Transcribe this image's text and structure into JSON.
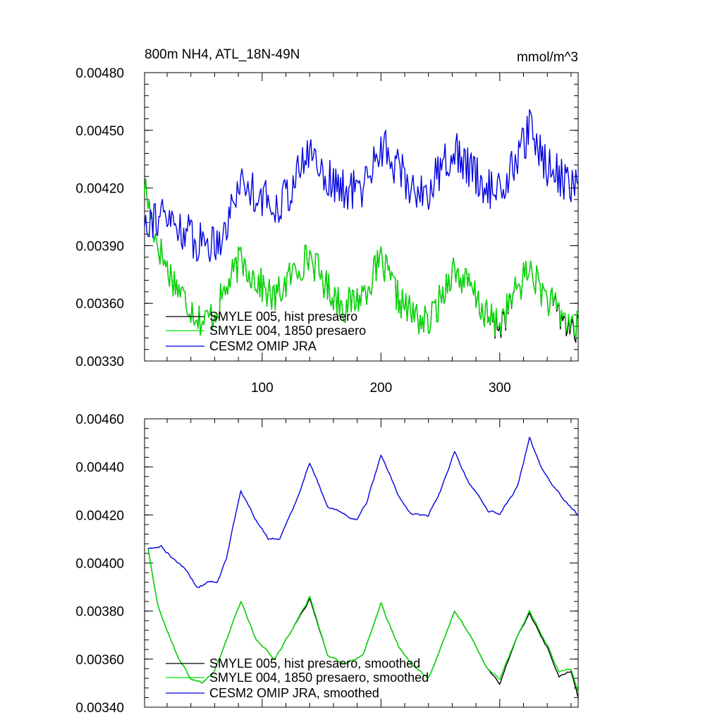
{
  "chart_data": [
    {
      "type": "line",
      "title": "800m NH4, ATL_18N-49N",
      "units": "mmol/m^3",
      "xlim": [
        1,
        366
      ],
      "ylim": [
        0.0033,
        0.0048
      ],
      "x_ticks": [
        100,
        200,
        300
      ],
      "y_ticks": [
        "0.00480",
        "0.00450",
        "0.00420",
        "0.00390",
        "0.00360",
        "0.00330"
      ],
      "y_tick_values": [
        0.0048,
        0.0045,
        0.0042,
        0.0039,
        0.0036,
        0.0033
      ],
      "legend": {
        "placement": "bottom-left"
      },
      "smoothed": false,
      "series": [
        {
          "name": "SMYLE 005, hist presaero",
          "color": "#000000",
          "key": "smyle005",
          "anchors": [
            [
              1,
              0.00422
            ],
            [
              10,
              0.00395
            ],
            [
              20,
              0.00378
            ],
            [
              35,
              0.00362
            ],
            [
              50,
              0.0035
            ],
            [
              60,
              0.00355
            ],
            [
              70,
              0.00368
            ],
            [
              82,
              0.00383
            ],
            [
              95,
              0.00372
            ],
            [
              110,
              0.00362
            ],
            [
              125,
              0.00375
            ],
            [
              140,
              0.00385
            ],
            [
              155,
              0.00368
            ],
            [
              170,
              0.00358
            ],
            [
              185,
              0.00365
            ],
            [
              200,
              0.00382
            ],
            [
              215,
              0.00362
            ],
            [
              225,
              0.00355
            ],
            [
              240,
              0.00349
            ],
            [
              250,
              0.00362
            ],
            [
              260,
              0.00378
            ],
            [
              275,
              0.00368
            ],
            [
              290,
              0.00352
            ],
            [
              300,
              0.00348
            ],
            [
              315,
              0.00368
            ],
            [
              325,
              0.00378
            ],
            [
              340,
              0.00362
            ],
            [
              355,
              0.0035
            ],
            [
              366,
              0.00345
            ]
          ],
          "amplitude": 9e-05
        },
        {
          "name": "SMYLE 004, 1850 presaero",
          "color": "#00e000",
          "key": "smyle004",
          "anchors": [
            [
              1,
              0.00422
            ],
            [
              10,
              0.00395
            ],
            [
              20,
              0.00378
            ],
            [
              35,
              0.00362
            ],
            [
              50,
              0.0035
            ],
            [
              60,
              0.00355
            ],
            [
              70,
              0.00368
            ],
            [
              82,
              0.00383
            ],
            [
              95,
              0.00372
            ],
            [
              110,
              0.00362
            ],
            [
              125,
              0.00375
            ],
            [
              140,
              0.00385
            ],
            [
              155,
              0.00368
            ],
            [
              170,
              0.00358
            ],
            [
              185,
              0.00365
            ],
            [
              200,
              0.00382
            ],
            [
              215,
              0.00362
            ],
            [
              225,
              0.00355
            ],
            [
              240,
              0.00349
            ],
            [
              250,
              0.00362
            ],
            [
              260,
              0.00378
            ],
            [
              275,
              0.00368
            ],
            [
              290,
              0.00352
            ],
            [
              300,
              0.0035
            ],
            [
              315,
              0.00368
            ],
            [
              325,
              0.00378
            ],
            [
              340,
              0.00362
            ],
            [
              355,
              0.00352
            ],
            [
              366,
              0.00347
            ]
          ],
          "amplitude": 9e-05
        },
        {
          "name": "CESM2 OMIP JRA",
          "color": "#0000e0",
          "key": "omip",
          "anchors": [
            [
              1,
              0.00405
            ],
            [
              15,
              0.00405
            ],
            [
              30,
              0.004
            ],
            [
              45,
              0.00392
            ],
            [
              60,
              0.00392
            ],
            [
              70,
              0.004
            ],
            [
              80,
              0.00423
            ],
            [
              95,
              0.00418
            ],
            [
              110,
              0.0041
            ],
            [
              125,
              0.0042
            ],
            [
              140,
              0.0044
            ],
            [
              155,
              0.00425
            ],
            [
              170,
              0.00418
            ],
            [
              185,
              0.0042
            ],
            [
              200,
              0.00443
            ],
            [
              215,
              0.0043
            ],
            [
              225,
              0.0042
            ],
            [
              240,
              0.00418
            ],
            [
              260,
              0.0044
            ],
            [
              275,
              0.0043
            ],
            [
              290,
              0.0042
            ],
            [
              300,
              0.00418
            ],
            [
              315,
              0.00435
            ],
            [
              325,
              0.0045
            ],
            [
              340,
              0.00432
            ],
            [
              355,
              0.00424
            ],
            [
              366,
              0.0042
            ]
          ],
          "amplitude": 0.00011
        }
      ]
    },
    {
      "type": "line",
      "title": "",
      "units": "",
      "xlim": [
        1,
        366
      ],
      "ylim": [
        0.0034,
        0.0046
      ],
      "x_ticks": [
        100,
        200,
        300
      ],
      "y_ticks": [
        "0.00460",
        "0.00440",
        "0.00420",
        "0.00400",
        "0.00380",
        "0.00360",
        "0.00340"
      ],
      "y_tick_values": [
        0.0046,
        0.0044,
        0.0042,
        0.004,
        0.0038,
        0.0036,
        0.0034
      ],
      "legend": {
        "placement": "bottom-left"
      },
      "smoothed": true,
      "series": [
        {
          "name": "SMYLE 005, hist presaero, smoothed",
          "color": "#000000",
          "key": "smyle005s",
          "anchors": [
            [
              4,
              0.00406
            ],
            [
              12,
              0.00383
            ],
            [
              20,
              0.00372
            ],
            [
              30,
              0.0036
            ],
            [
              40,
              0.00352
            ],
            [
              50,
              0.0035
            ],
            [
              60,
              0.00355
            ],
            [
              70,
              0.00368
            ],
            [
              82,
              0.00384
            ],
            [
              95,
              0.00368
            ],
            [
              110,
              0.0036
            ],
            [
              125,
              0.00372
            ],
            [
              140,
              0.00385
            ],
            [
              155,
              0.00362
            ],
            [
              170,
              0.00358
            ],
            [
              185,
              0.00362
            ],
            [
              200,
              0.00383
            ],
            [
              215,
              0.00365
            ],
            [
              225,
              0.00358
            ],
            [
              240,
              0.00352
            ],
            [
              250,
              0.00364
            ],
            [
              262,
              0.0038
            ],
            [
              275,
              0.0037
            ],
            [
              290,
              0.00356
            ],
            [
              300,
              0.0035
            ],
            [
              315,
              0.0037
            ],
            [
              325,
              0.00379
            ],
            [
              340,
              0.00365
            ],
            [
              350,
              0.00353
            ],
            [
              360,
              0.00355
            ],
            [
              366,
              0.00344
            ]
          ],
          "amplitude": 1.2e-05
        },
        {
          "name": "SMYLE 004, 1850 presaero, smoothed",
          "color": "#00e000",
          "key": "smyle004s",
          "anchors": [
            [
              4,
              0.00406
            ],
            [
              12,
              0.00383
            ],
            [
              20,
              0.00372
            ],
            [
              30,
              0.0036
            ],
            [
              40,
              0.00352
            ],
            [
              50,
              0.0035
            ],
            [
              60,
              0.00355
            ],
            [
              70,
              0.00368
            ],
            [
              82,
              0.00384
            ],
            [
              95,
              0.00368
            ],
            [
              110,
              0.0036
            ],
            [
              125,
              0.00372
            ],
            [
              140,
              0.00386
            ],
            [
              155,
              0.00362
            ],
            [
              170,
              0.00358
            ],
            [
              185,
              0.00362
            ],
            [
              200,
              0.00383
            ],
            [
              215,
              0.00365
            ],
            [
              225,
              0.00358
            ],
            [
              240,
              0.00352
            ],
            [
              250,
              0.00364
            ],
            [
              262,
              0.0038
            ],
            [
              275,
              0.0037
            ],
            [
              290,
              0.00356
            ],
            [
              300,
              0.00352
            ],
            [
              315,
              0.0037
            ],
            [
              325,
              0.0038
            ],
            [
              340,
              0.00366
            ],
            [
              350,
              0.00355
            ],
            [
              360,
              0.00356
            ],
            [
              366,
              0.00346
            ]
          ],
          "amplitude": 1.2e-05
        },
        {
          "name": "CESM2 OMIP JRA, smoothed",
          "color": "#0000e0",
          "key": "omips",
          "anchors": [
            [
              4,
              0.00406
            ],
            [
              15,
              0.00407
            ],
            [
              25,
              0.00402
            ],
            [
              35,
              0.00398
            ],
            [
              45,
              0.0039
            ],
            [
              55,
              0.00392
            ],
            [
              62,
              0.00392
            ],
            [
              70,
              0.00402
            ],
            [
              82,
              0.0043
            ],
            [
              95,
              0.00418
            ],
            [
              105,
              0.0041
            ],
            [
              115,
              0.0041
            ],
            [
              128,
              0.00425
            ],
            [
              140,
              0.00442
            ],
            [
              155,
              0.00424
            ],
            [
              170,
              0.0042
            ],
            [
              180,
              0.00418
            ],
            [
              188,
              0.00425
            ],
            [
              200,
              0.00445
            ],
            [
              215,
              0.00428
            ],
            [
              225,
              0.0042
            ],
            [
              240,
              0.0042
            ],
            [
              250,
              0.0043
            ],
            [
              262,
              0.00446
            ],
            [
              275,
              0.00432
            ],
            [
              290,
              0.00422
            ],
            [
              300,
              0.0042
            ],
            [
              315,
              0.00432
            ],
            [
              325,
              0.00452
            ],
            [
              335,
              0.0044
            ],
            [
              345,
              0.00432
            ],
            [
              355,
              0.00426
            ],
            [
              366,
              0.0042
            ]
          ],
          "amplitude": 1.5e-05
        }
      ]
    }
  ]
}
